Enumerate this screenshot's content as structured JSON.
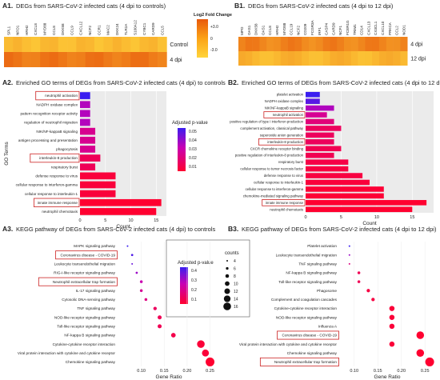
{
  "panels": {
    "a1": {
      "tag": "A1.",
      "title": "DEGs from SARS-CoV-2 infected cats (4 dpi to controls)"
    },
    "b1": {
      "tag": "B1.",
      "title": "DEGs from SARS-CoV-2 infected cats (4 dpi to 12 dpi)"
    },
    "a2": {
      "tag": "A2.",
      "title": "Enriched GO terms of DEGs from SARS-CoV-2 infected cats (4 dpi) to controls"
    },
    "b2": {
      "tag": "B2.",
      "title": "Enriched GO terms of DEGs from SARS-CoV-2 infected cats (4 dpi to 12 dpi)"
    },
    "a3": {
      "tag": "A3.",
      "title": "KEGG pathway of DEGs from SARS-CoV-2 infected cats (4 dpi) to controls"
    },
    "b3": {
      "tag": "B3.",
      "title": "KEGG pathway of DEGs from SARS-CoV-2 infected cats (4 dpi  to 12 dpi)"
    }
  },
  "heat_legend": {
    "title": "Log2 Fold Change",
    "ticks": [
      "+3.0",
      "0",
      "-3.0"
    ]
  },
  "pval_legend_a2": {
    "title": "Adjusted p-value",
    "ticks": [
      "0.05",
      "0.04",
      "0.03",
      "0.02",
      "0.01"
    ]
  },
  "pval_legend_a3": {
    "title": "Adjusted p-value",
    "ticks": [
      "0.4",
      "0.3",
      "0.2",
      "0.1"
    ]
  },
  "counts_legend": {
    "title": "counts",
    "values": [
      "4",
      "6",
      "8",
      "10",
      "12",
      "14",
      "16"
    ]
  },
  "colors": {
    "high": "#ff0030",
    "mid": "#c800b4",
    "low": "#3a1ef0",
    "heat_hi": "#e8590c",
    "heat_lo": "#ffd43b",
    "box": "#cc2222"
  },
  "chart_data": [
    {
      "id": "A1",
      "type": "heatmap",
      "title": "DEGs from SARS-CoV-2 infected cats (4 dpi to controls)",
      "columns": [
        "SPL1",
        "NFO1",
        "HRH2",
        "CXCL8",
        "MYD88",
        "CCL8",
        "DKK58",
        "CCL9",
        "CXCL12",
        "NCF2",
        "CCR1",
        "MAC2",
        "DKK24",
        "TLR2A",
        "S100A12",
        "CYBC1",
        "CARD9",
        "CCL5"
      ],
      "rows": [
        "Control",
        "4 dpi"
      ]
    },
    {
      "id": "B1",
      "type": "heatmap",
      "title": "DEGs from SARS-CoV-2 infected cats (4 dpi to 12 dpi)",
      "columns": [
        "MPO",
        "OAS1",
        "DKK58",
        "OAS1",
        "CCL8",
        "HRH2",
        "MYD88",
        "CCL19",
        "NCF2",
        "CD209",
        "FCGR3A",
        "IRF1",
        "CASP4",
        "CARD9",
        "NCF1",
        "FCER1G",
        "TRIM1",
        "CD14",
        "CXCL13",
        "CX3CL1",
        "CXCL10",
        "PRKCA",
        "CCL2",
        "NOD1"
      ],
      "rows": [
        "4 dpi",
        "12 dpi"
      ]
    },
    {
      "id": "A2",
      "type": "bar",
      "title": "Enriched GO terms of DEGs from SARS-CoV-2 infected cats (4 dpi) to controls",
      "xlabel": "Count",
      "ylabel": "GO Terms",
      "xlim": [
        0,
        17
      ],
      "categories": [
        "neutrophil activation",
        "NADPH oxidase complex",
        "pattern recognition receptor activity",
        "regulation of neutrophil migration",
        "NIK/NF-kappaB signaling",
        "antigen processing and presentation",
        "phagocytosis",
        "interleukin-8 production",
        "respiratory burst",
        "defense response to virus",
        "cellular response to interferon-gamma",
        "cellular response to interleukin-1",
        "innate immune response",
        "neutrophil chemotaxis"
      ],
      "values": [
        2,
        2,
        2,
        2,
        3,
        3,
        3,
        4,
        3,
        7,
        7,
        7,
        16,
        15
      ],
      "pvalues": [
        0.05,
        0.03,
        0.03,
        0.03,
        0.02,
        0.02,
        0.02,
        0.01,
        0.01,
        0.005,
        0.005,
        0.005,
        0.003,
        0.003
      ],
      "ticks": [
        0,
        5,
        10,
        15
      ],
      "boxed": [
        0,
        7,
        12
      ]
    },
    {
      "id": "B2",
      "type": "bar",
      "title": "Enriched GO terms of DEGs from SARS-CoV-2 infected cats (4 dpi to 12 dpi)",
      "xlabel": "Count",
      "ylabel": "",
      "xlim": [
        0,
        18
      ],
      "categories": [
        "platelet activation",
        "NADPH oxidase complex",
        "NIK/NF-kappaB signaling",
        "neutrophil activation",
        "positive regulation of type I interferon production",
        "complement activation, classical pathway",
        "superoxide anion generation",
        "interleukin-8 production",
        "CXCR chemokine receptor binding",
        "positive regulation of interleukin-8 production",
        "respiratory burst",
        "cellular response to tumor necrosis factor",
        "defense response to virus",
        "cellular response to interleukin-1",
        "cellular response to interferon-gamma",
        "chemokine-mediated signaling pathway",
        "innate immune response",
        "neutrophil chemotaxis"
      ],
      "values": [
        2,
        2,
        4,
        3,
        4,
        5,
        4,
        4,
        5,
        4,
        6,
        6,
        8,
        9,
        11,
        11,
        17,
        15
      ],
      "pvalues": [
        0.05,
        0.045,
        0.03,
        0.02,
        0.015,
        0.01,
        0.01,
        0.01,
        0.008,
        0.008,
        0.006,
        0.005,
        0.005,
        0.004,
        0.003,
        0.003,
        0.002,
        0.002
      ],
      "ticks": [
        0,
        5,
        10,
        15
      ],
      "boxed": [
        3,
        7,
        16
      ]
    },
    {
      "id": "A3",
      "type": "scatter",
      "title": "KEGG pathway of DEGs from SARS-CoV-2 infected cats (4 dpi) to controls",
      "xlabel": "Gene Ratio",
      "xlim": [
        0.05,
        0.27
      ],
      "ticks": [
        0.1,
        0.15,
        0.2,
        0.25
      ],
      "categories": [
        "MAPK signaling pathway",
        "Coronavirus disease - COVID-19",
        "Leukocyte transendothelial migration",
        "RIG-I-like receptor signaling pathway",
        "Neutrophil extracellular trap formation",
        "IL-17 signaling pathway",
        "Cytosolic DNA-sensing pathway",
        "TNF signaling pathway",
        "NOD-like receptor signaling pathway",
        "Toll-like receptor signaling pathway",
        "NF-kappa B signaling pathway",
        "Cytokine-cytokine receptor interaction",
        "Viral protein interaction with cytokine and cytokine receptor",
        "Chemokine signaling pathway"
      ],
      "x": [
        0.07,
        0.08,
        0.08,
        0.09,
        0.1,
        0.1,
        0.11,
        0.13,
        0.14,
        0.14,
        0.17,
        0.23,
        0.24,
        0.25
      ],
      "counts": [
        4,
        5,
        4,
        5,
        6,
        6,
        6,
        7,
        8,
        8,
        9,
        14,
        13,
        16
      ],
      "pvalues": [
        0.3,
        0.28,
        0.25,
        0.2,
        0.15,
        0.12,
        0.1,
        0.06,
        0.05,
        0.05,
        0.04,
        0.02,
        0.02,
        0.01
      ],
      "boxed": [
        1,
        4
      ]
    },
    {
      "id": "B3",
      "type": "scatter",
      "title": "KEGG pathway of DEGs from SARS-CoV-2 infected cats (4 dpi  to 12 dpi)",
      "xlabel": "Gene Ratio",
      "xlim": [
        0.07,
        0.27
      ],
      "ticks": [
        0.1,
        0.15,
        0.2,
        0.25
      ],
      "categories": [
        "Platelet activation",
        "Leukocyte transendothelial migration",
        "TNF signaling pathway",
        "NF-kappa B signaling pathway",
        "Toll-like receptor signaling pathway",
        "Phagosome",
        "Complement and coagulation cascades",
        "Cytokine-cytokine receptor interaction",
        "NOD-like receptor signaling pathway",
        "Influenza A",
        "Coronavirus disease - COVID-19",
        "Viral protein interaction with cytokine and cytokine receptor",
        "Chemokine signaling pathway",
        "Neutrophil extracellular trap formation"
      ],
      "x": [
        0.09,
        0.09,
        0.09,
        0.11,
        0.11,
        0.13,
        0.14,
        0.18,
        0.18,
        0.18,
        0.24,
        0.18,
        0.24,
        0.26
      ],
      "counts": [
        4,
        4,
        4,
        6,
        6,
        7,
        7,
        10,
        10,
        10,
        14,
        10,
        14,
        16
      ],
      "pvalues": [
        0.3,
        0.2,
        0.1,
        0.05,
        0.05,
        0.03,
        0.03,
        0.02,
        0.02,
        0.02,
        0.01,
        0.02,
        0.01,
        0.01
      ],
      "boxed": [
        10,
        13
      ]
    }
  ]
}
